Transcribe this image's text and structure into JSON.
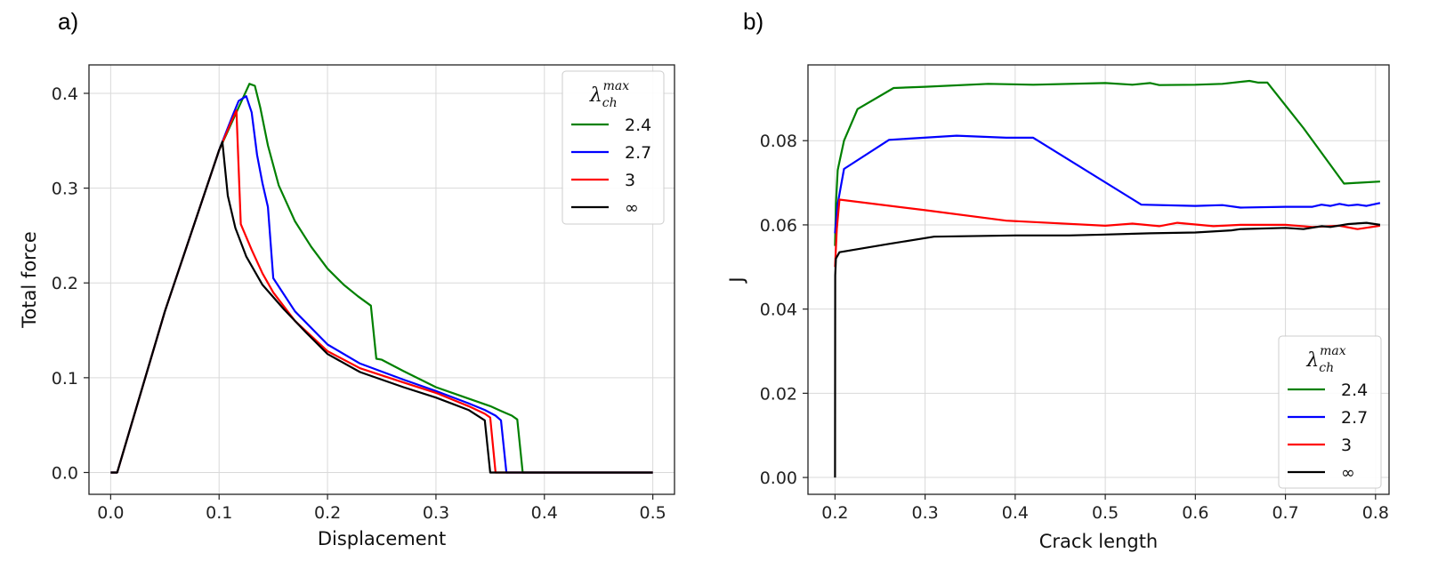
{
  "chart_data": [
    {
      "panel_label": "a)",
      "type": "line",
      "xlabel": "Displacement",
      "ylabel": "Total force",
      "xlim": [
        -0.02,
        0.52
      ],
      "ylim": [
        -0.023,
        0.43
      ],
      "xticks": [
        "0.0",
        "0.1",
        "0.2",
        "0.3",
        "0.4",
        "0.5"
      ],
      "yticks": [
        "0.0",
        "0.1",
        "0.2",
        "0.3",
        "0.4"
      ],
      "grid": true,
      "legend": {
        "placement": "top-right",
        "title_symbol": "λ",
        "title_sub": "ch",
        "title_sup": "max"
      },
      "series": [
        {
          "name": "2.4",
          "color": "#008000",
          "x": [
            0,
            0.006,
            0.05,
            0.1,
            0.122,
            0.128,
            0.133,
            0.138,
            0.145,
            0.155,
            0.17,
            0.185,
            0.2,
            0.215,
            0.228,
            0.24,
            0.245,
            0.25,
            0.27,
            0.3,
            0.33,
            0.35,
            0.36,
            0.37,
            0.375,
            0.38,
            0.5
          ],
          "y": [
            0,
            0,
            0.17,
            0.34,
            0.395,
            0.41,
            0.408,
            0.385,
            0.345,
            0.303,
            0.265,
            0.238,
            0.215,
            0.198,
            0.186,
            0.176,
            0.12,
            0.119,
            0.107,
            0.09,
            0.078,
            0.07,
            0.065,
            0.06,
            0.056,
            0,
            0
          ]
        },
        {
          "name": "2.7",
          "color": "#0000ff",
          "x": [
            0,
            0.006,
            0.05,
            0.1,
            0.112,
            0.118,
            0.125,
            0.13,
            0.135,
            0.14,
            0.145,
            0.15,
            0.17,
            0.2,
            0.23,
            0.27,
            0.3,
            0.33,
            0.345,
            0.355,
            0.36,
            0.365,
            0.5
          ],
          "y": [
            0,
            0,
            0.17,
            0.34,
            0.375,
            0.392,
            0.397,
            0.38,
            0.335,
            0.305,
            0.28,
            0.205,
            0.17,
            0.135,
            0.115,
            0.098,
            0.086,
            0.073,
            0.066,
            0.06,
            0.055,
            0,
            0
          ]
        },
        {
          "name": "3",
          "color": "#ff0000",
          "x": [
            0,
            0.006,
            0.05,
            0.1,
            0.112,
            0.116,
            0.12,
            0.13,
            0.14,
            0.15,
            0.17,
            0.2,
            0.23,
            0.27,
            0.3,
            0.33,
            0.345,
            0.35,
            0.355,
            0.5
          ],
          "y": [
            0,
            0,
            0.17,
            0.34,
            0.372,
            0.382,
            0.262,
            0.235,
            0.21,
            0.19,
            0.16,
            0.128,
            0.11,
            0.095,
            0.084,
            0.07,
            0.062,
            0.058,
            0,
            0
          ]
        },
        {
          "name": "∞",
          "color": "#000000",
          "x": [
            0,
            0.006,
            0.05,
            0.1,
            0.103,
            0.108,
            0.115,
            0.125,
            0.14,
            0.16,
            0.18,
            0.2,
            0.23,
            0.27,
            0.3,
            0.33,
            0.345,
            0.35,
            0.5
          ],
          "y": [
            0,
            0,
            0.17,
            0.34,
            0.349,
            0.292,
            0.258,
            0.228,
            0.198,
            0.172,
            0.148,
            0.125,
            0.106,
            0.09,
            0.079,
            0.066,
            0.055,
            0,
            0
          ]
        }
      ]
    },
    {
      "panel_label": "b)",
      "type": "line",
      "xlabel": "Crack length",
      "ylabel": "J",
      "xlim": [
        0.17,
        0.815
      ],
      "ylim": [
        -0.004,
        0.098
      ],
      "xticks": [
        "0.2",
        "0.3",
        "0.4",
        "0.5",
        "0.6",
        "0.7",
        "0.8"
      ],
      "yticks": [
        "0.00",
        "0.02",
        "0.04",
        "0.06",
        "0.08"
      ],
      "grid": true,
      "legend": {
        "placement": "bottom-right",
        "title_symbol": "λ",
        "title_sub": "ch",
        "title_sup": "max"
      },
      "series": [
        {
          "name": "2.4",
          "color": "#008000",
          "x": [
            0.2,
            0.201,
            0.203,
            0.205,
            0.21,
            0.225,
            0.265,
            0.3,
            0.37,
            0.42,
            0.5,
            0.53,
            0.55,
            0.56,
            0.6,
            0.63,
            0.66,
            0.67,
            0.68,
            0.72,
            0.765,
            0.78,
            0.805
          ],
          "y": [
            0.055,
            0.065,
            0.073,
            0.075,
            0.08,
            0.0875,
            0.0925,
            0.0928,
            0.0935,
            0.0933,
            0.0937,
            0.0933,
            0.0937,
            0.0932,
            0.0933,
            0.0935,
            0.0942,
            0.0938,
            0.0938,
            0.083,
            0.0698,
            0.07,
            0.0703
          ]
        },
        {
          "name": "2.7",
          "color": "#0000ff",
          "x": [
            0.2,
            0.203,
            0.21,
            0.26,
            0.335,
            0.39,
            0.42,
            0.54,
            0.6,
            0.63,
            0.65,
            0.7,
            0.73,
            0.74,
            0.75,
            0.76,
            0.77,
            0.78,
            0.79,
            0.805
          ],
          "y": [
            0.058,
            0.065,
            0.0733,
            0.0802,
            0.0812,
            0.0807,
            0.0807,
            0.0648,
            0.0645,
            0.0647,
            0.0641,
            0.0643,
            0.0643,
            0.0648,
            0.0645,
            0.065,
            0.0646,
            0.0648,
            0.0645,
            0.0652
          ]
        },
        {
          "name": "3",
          "color": "#ff0000",
          "x": [
            0.2,
            0.202,
            0.205,
            0.3,
            0.39,
            0.5,
            0.53,
            0.56,
            0.58,
            0.62,
            0.65,
            0.7,
            0.73,
            0.76,
            0.78,
            0.805
          ],
          "y": [
            0.05,
            0.059,
            0.066,
            0.0635,
            0.061,
            0.0598,
            0.0603,
            0.0597,
            0.0605,
            0.0597,
            0.06,
            0.06,
            0.0595,
            0.0598,
            0.059,
            0.0598
          ]
        },
        {
          "name": "∞",
          "color": "#000000",
          "x": [
            0.2,
            0.2002,
            0.201,
            0.205,
            0.26,
            0.31,
            0.4,
            0.46,
            0.5,
            0.55,
            0.6,
            0.64,
            0.65,
            0.7,
            0.72,
            0.74,
            0.75,
            0.77,
            0.79,
            0.805
          ],
          "y": [
            0,
            0.048,
            0.052,
            0.0535,
            0.0555,
            0.0572,
            0.0575,
            0.0575,
            0.0577,
            0.058,
            0.0582,
            0.0587,
            0.059,
            0.0593,
            0.059,
            0.0597,
            0.0595,
            0.0602,
            0.0605,
            0.06
          ]
        }
      ]
    }
  ]
}
